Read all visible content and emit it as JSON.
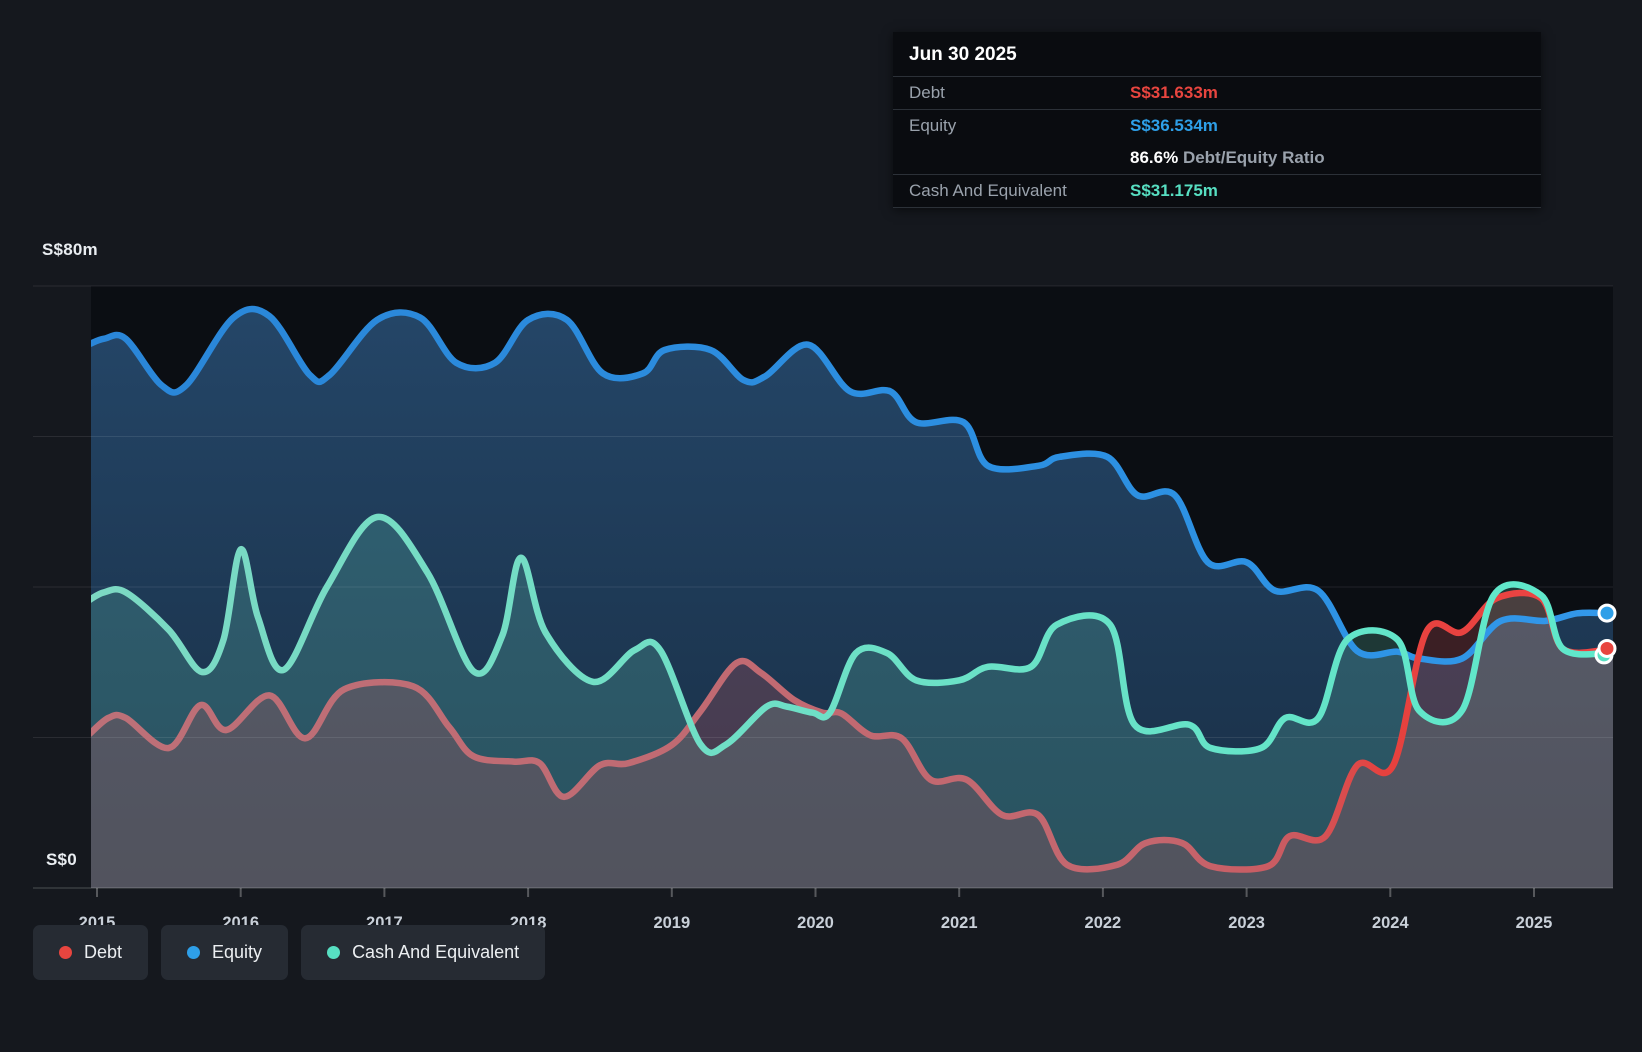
{
  "tooltip": {
    "date": "Jun 30 2025",
    "debt_label": "Debt",
    "debt_value": "S$31.633m",
    "equity_label": "Equity",
    "equity_value": "S$36.534m",
    "ratio_value": "86.6%",
    "ratio_label": "Debt/Equity Ratio",
    "cash_label": "Cash And Equivalent",
    "cash_value": "S$31.175m"
  },
  "axis": {
    "y_top": "S$80m",
    "y_zero": "S$0"
  },
  "legend": {
    "debt": "Debt",
    "equity": "Equity",
    "cash": "Cash And Equivalent"
  },
  "chart_data": {
    "type": "area",
    "unit": "S$ millions",
    "ylim": [
      0,
      80
    ],
    "y_tick_labels": [
      "S$80m",
      "S$0"
    ],
    "gridlines_m": [
      80,
      60,
      40,
      20,
      0
    ],
    "x_ticks": [
      2015,
      2016,
      2017,
      2018,
      2019,
      2020,
      2021,
      2022,
      2023,
      2024,
      2025
    ],
    "x_range": [
      2014.95,
      2025.5
    ],
    "legend_position": "bottom-left",
    "colors": {
      "debt": "#e8453f",
      "equity": "#2e9fe8",
      "cash": "#57dfc2"
    },
    "series": [
      {
        "name": "Equity",
        "color": "#2e9fe8",
        "end_value": 36.534,
        "points": [
          [
            2014.95,
            72.3
          ],
          [
            2015.05,
            73.0
          ],
          [
            2015.2,
            73.0
          ],
          [
            2015.45,
            66.8
          ],
          [
            2015.62,
            66.8
          ],
          [
            2015.95,
            75.8
          ],
          [
            2016.2,
            76.0
          ],
          [
            2016.48,
            68.2
          ],
          [
            2016.62,
            68.2
          ],
          [
            2016.95,
            75.5
          ],
          [
            2017.25,
            75.8
          ],
          [
            2017.5,
            69.8
          ],
          [
            2017.77,
            69.8
          ],
          [
            2018.0,
            75.5
          ],
          [
            2018.27,
            75.5
          ],
          [
            2018.52,
            68.4
          ],
          [
            2018.8,
            68.4
          ],
          [
            2018.95,
            71.5
          ],
          [
            2019.27,
            71.5
          ],
          [
            2019.5,
            67.5
          ],
          [
            2019.65,
            68.0
          ],
          [
            2019.95,
            72.2
          ],
          [
            2020.24,
            66.0
          ],
          [
            2020.52,
            66.0
          ],
          [
            2020.7,
            61.9
          ],
          [
            2021.03,
            61.9
          ],
          [
            2021.2,
            56.1
          ],
          [
            2021.55,
            56.1
          ],
          [
            2021.7,
            57.3
          ],
          [
            2022.03,
            57.3
          ],
          [
            2022.24,
            52.2
          ],
          [
            2022.5,
            52.2
          ],
          [
            2022.73,
            43.3
          ],
          [
            2023.0,
            43.3
          ],
          [
            2023.2,
            39.5
          ],
          [
            2023.5,
            39.5
          ],
          [
            2023.77,
            31.5
          ],
          [
            2024.05,
            31.4
          ],
          [
            2024.2,
            30.5
          ],
          [
            2024.5,
            30.5
          ],
          [
            2024.77,
            35.5
          ],
          [
            2025.08,
            35.5
          ],
          [
            2025.3,
            36.5
          ],
          [
            2025.5,
            36.534
          ]
        ]
      },
      {
        "name": "Debt",
        "color": "#e8453f",
        "end_value": 31.633,
        "points": [
          [
            2014.95,
            20.5
          ],
          [
            2015.08,
            22.6
          ],
          [
            2015.2,
            22.6
          ],
          [
            2015.5,
            18.6
          ],
          [
            2015.72,
            24.3
          ],
          [
            2015.9,
            21.0
          ],
          [
            2016.2,
            25.6
          ],
          [
            2016.45,
            19.9
          ],
          [
            2016.72,
            26.4
          ],
          [
            2017.2,
            26.8
          ],
          [
            2017.45,
            21.4
          ],
          [
            2017.62,
            17.5
          ],
          [
            2017.9,
            16.8
          ],
          [
            2018.08,
            16.6
          ],
          [
            2018.25,
            12.1
          ],
          [
            2018.5,
            16.3
          ],
          [
            2018.7,
            16.6
          ],
          [
            2019.0,
            19.0
          ],
          [
            2019.2,
            23.5
          ],
          [
            2019.45,
            29.9
          ],
          [
            2019.62,
            28.6
          ],
          [
            2019.85,
            25.0
          ],
          [
            2020.05,
            23.3
          ],
          [
            2020.18,
            23.2
          ],
          [
            2020.38,
            20.3
          ],
          [
            2020.6,
            19.9
          ],
          [
            2020.8,
            14.4
          ],
          [
            2021.05,
            14.4
          ],
          [
            2021.3,
            9.7
          ],
          [
            2021.55,
            9.7
          ],
          [
            2021.75,
            3.1
          ],
          [
            2022.1,
            3.1
          ],
          [
            2022.3,
            6.0
          ],
          [
            2022.55,
            6.0
          ],
          [
            2022.75,
            2.9
          ],
          [
            2023.15,
            2.9
          ],
          [
            2023.3,
            6.9
          ],
          [
            2023.55,
            6.9
          ],
          [
            2023.77,
            16.3
          ],
          [
            2024.02,
            16.3
          ],
          [
            2024.25,
            34.0
          ],
          [
            2024.5,
            34.0
          ],
          [
            2024.74,
            38.5
          ],
          [
            2025.05,
            38.5
          ],
          [
            2025.2,
            31.8
          ],
          [
            2025.5,
            31.633
          ]
        ]
      },
      {
        "name": "Cash And Equivalent",
        "color": "#57dfc2",
        "end_value": 31.175,
        "points": [
          [
            2014.95,
            38.3
          ],
          [
            2015.05,
            39.3
          ],
          [
            2015.2,
            39.3
          ],
          [
            2015.5,
            34.3
          ],
          [
            2015.73,
            28.7
          ],
          [
            2015.88,
            33.0
          ],
          [
            2016.0,
            45.0
          ],
          [
            2016.12,
            36.0
          ],
          [
            2016.3,
            29.0
          ],
          [
            2016.6,
            40.0
          ],
          [
            2016.95,
            49.3
          ],
          [
            2017.3,
            41.9
          ],
          [
            2017.62,
            28.8
          ],
          [
            2017.82,
            33.5
          ],
          [
            2017.95,
            43.9
          ],
          [
            2018.12,
            34.0
          ],
          [
            2018.45,
            27.4
          ],
          [
            2018.74,
            31.6
          ],
          [
            2018.92,
            31.6
          ],
          [
            2019.2,
            19.1
          ],
          [
            2019.38,
            19.1
          ],
          [
            2019.66,
            24.1
          ],
          [
            2019.8,
            24.1
          ],
          [
            2019.98,
            23.3
          ],
          [
            2020.1,
            23.3
          ],
          [
            2020.28,
            31.2
          ],
          [
            2020.5,
            31.2
          ],
          [
            2020.7,
            27.6
          ],
          [
            2021.0,
            27.6
          ],
          [
            2021.2,
            29.4
          ],
          [
            2021.5,
            29.4
          ],
          [
            2021.68,
            35.0
          ],
          [
            2022.05,
            35.0
          ],
          [
            2022.22,
            21.7
          ],
          [
            2022.6,
            21.7
          ],
          [
            2022.75,
            18.6
          ],
          [
            2023.1,
            18.6
          ],
          [
            2023.27,
            22.6
          ],
          [
            2023.5,
            22.6
          ],
          [
            2023.7,
            33.0
          ],
          [
            2024.05,
            33.0
          ],
          [
            2024.2,
            23.6
          ],
          [
            2024.5,
            23.6
          ],
          [
            2024.72,
            38.9
          ],
          [
            2025.05,
            38.9
          ],
          [
            2025.2,
            31.8
          ],
          [
            2025.5,
            31.175
          ]
        ]
      }
    ]
  }
}
